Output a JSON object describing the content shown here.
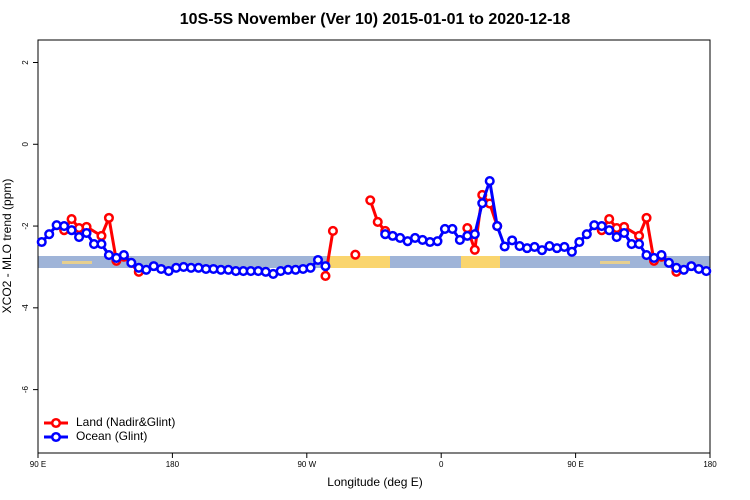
{
  "chart_data": {
    "type": "line",
    "title": "10S-5S November (Ver 10)   2015-01-01 to 2020-12-18",
    "x_label": "Longitude (deg E)",
    "y_label": "XCO2 - MLO trend (ppm)",
    "xlim": [
      90,
      540
    ],
    "ylim": [
      -7.55,
      2.55
    ],
    "xticks": [
      {
        "value": 90,
        "label": "90 E"
      },
      {
        "value": 180,
        "label": "180"
      },
      {
        "value": 270,
        "label": "90 W"
      },
      {
        "value": 360,
        "label": "0"
      },
      {
        "value": 450,
        "label": "90 E"
      },
      {
        "value": 540,
        "label": "180"
      }
    ],
    "yticks": [
      -6,
      -4,
      -2,
      0,
      2
    ],
    "legend": "bottom-left",
    "series": [
      {
        "name": "Land (Nadir&Glint)",
        "color": "#ff0000",
        "x": [
          107.5,
          112.5,
          117.5,
          122.5,
          132.5,
          137.5,
          142.5,
          147.5,
          157.5,
          200,
          282.5,
          287.5,
          292.5,
          302.5,
          307.5,
          312.5,
          317.5,
          322.5,
          340,
          377.5,
          382.5,
          387.5,
          392.5,
          397.5,
          430,
          467.5,
          472.5,
          477.5,
          482.5,
          492.5,
          497.5,
          502.5,
          507.5,
          517.5
        ],
        "values": [
          -2.1,
          -1.83,
          -2.05,
          -2.02,
          -2.24,
          -1.8,
          -2.85,
          -2.75,
          -3.12,
          null,
          -3.22,
          -2.12,
          null,
          -2.7,
          null,
          -1.37,
          -1.9,
          -2.12,
          null,
          -2.05,
          -2.58,
          -1.24,
          -1.45,
          -2.0,
          null,
          -2.1,
          -1.83,
          -2.05,
          -2.02,
          -2.24,
          -1.8,
          -2.85,
          -2.75,
          -3.12
        ]
      },
      {
        "name": "Ocean (Glint)",
        "color": "#0000ff",
        "x": [
          92.5,
          97.5,
          102.5,
          107.5,
          112.5,
          117.5,
          122.5,
          127.5,
          132.5,
          137.5,
          142.5,
          147.5,
          152.5,
          157.5,
          162.5,
          167.5,
          172.5,
          177.5,
          182.5,
          187.5,
          192.5,
          197.5,
          202.5,
          207.5,
          212.5,
          217.5,
          222.5,
          227.5,
          232.5,
          237.5,
          242.5,
          247.5,
          252.5,
          257.5,
          262.5,
          267.5,
          272.5,
          277.5,
          282.5,
          302.5,
          322.5,
          327.5,
          332.5,
          337.5,
          342.5,
          347.5,
          352.5,
          357.5,
          362.5,
          367.5,
          372.5,
          377.5,
          382.5,
          387.5,
          392.5,
          397.5,
          402.5,
          407.5,
          412.5,
          417.5,
          422.5,
          427.5,
          432.5,
          437.5,
          442.5,
          447.5,
          452.5,
          457.5,
          462.5,
          467.5,
          472.5,
          477.5,
          482.5,
          487.5,
          492.5,
          497.5,
          502.5,
          507.5,
          512.5,
          517.5,
          522.5,
          527.5,
          532.5,
          537.5
        ],
        "values": [
          -2.39,
          -2.2,
          -1.98,
          -2.0,
          -2.1,
          -2.27,
          -2.17,
          -2.44,
          -2.44,
          -2.71,
          -2.78,
          -2.71,
          -2.9,
          -3.02,
          -3.07,
          -2.98,
          -3.05,
          -3.1,
          -3.02,
          -3.0,
          -3.02,
          -3.02,
          -3.05,
          -3.05,
          -3.07,
          -3.07,
          -3.1,
          -3.1,
          -3.1,
          -3.1,
          -3.12,
          -3.17,
          -3.1,
          -3.07,
          -3.07,
          -3.05,
          -3.02,
          -2.83,
          -2.98,
          null,
          -2.2,
          -2.24,
          -2.29,
          -2.37,
          -2.29,
          -2.34,
          -2.39,
          -2.37,
          -2.07,
          -2.07,
          -2.34,
          -2.24,
          -2.2,
          -1.44,
          -0.9,
          -2.0,
          -2.5,
          -2.35,
          -2.49,
          -2.54,
          -2.51,
          -2.59,
          -2.49,
          -2.54,
          -2.51,
          -2.63,
          -2.39,
          -2.2,
          -1.98,
          -2.0,
          -2.1,
          -2.27,
          -2.17,
          -2.44,
          -2.44,
          -2.71,
          -2.78,
          -2.71,
          -2.9,
          -3.02,
          -3.07,
          -2.98,
          -3.05,
          -3.1
        ]
      }
    ]
  }
}
